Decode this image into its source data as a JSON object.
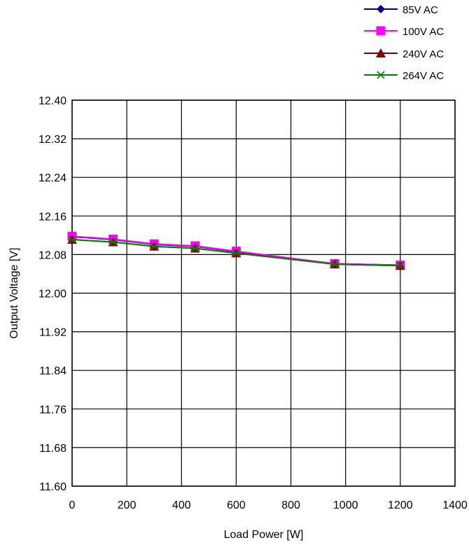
{
  "chart_data": {
    "type": "line",
    "title": "",
    "xlabel": "Load Power [W]",
    "ylabel": "Output Voltage [V]",
    "xlim": [
      0,
      1400
    ],
    "ylim": [
      11.6,
      12.4
    ],
    "xticks": [
      "0",
      "200",
      "400",
      "600",
      "800",
      "1000",
      "1200",
      "1400"
    ],
    "yticks": [
      "11.60",
      "11.68",
      "11.76",
      "11.84",
      "11.92",
      "12.00",
      "12.08",
      "12.16",
      "12.24",
      "12.32",
      "12.40"
    ],
    "grid": true,
    "legend_position": "top-right",
    "series": [
      {
        "name": "85V AC",
        "color": "#000080",
        "marker": "diamond",
        "x": [
          0,
          150,
          300,
          450,
          600,
          960,
          1200
        ],
        "y": [
          12.117,
          12.111,
          12.101,
          12.097,
          12.086,
          12.061,
          12.058
        ]
      },
      {
        "name": "100V AC",
        "color": "#ff00ff",
        "marker": "square",
        "x": [
          0,
          150,
          300,
          450,
          600,
          960,
          1200
        ],
        "y": [
          12.118,
          12.112,
          12.102,
          12.098,
          12.087,
          12.061,
          12.058
        ]
      },
      {
        "name": "240V AC",
        "color": "#800000",
        "marker": "triangle",
        "x": [
          0,
          150,
          300,
          450,
          600,
          960,
          1200
        ],
        "y": [
          12.111,
          12.106,
          12.097,
          12.093,
          12.083,
          12.06,
          12.057
        ]
      },
      {
        "name": "264V AC",
        "color": "#008000",
        "marker": "x",
        "x": [
          0,
          150,
          300,
          450,
          600,
          960,
          1200
        ],
        "y": [
          12.111,
          12.106,
          12.097,
          12.093,
          12.083,
          12.06,
          12.057
        ]
      }
    ]
  }
}
